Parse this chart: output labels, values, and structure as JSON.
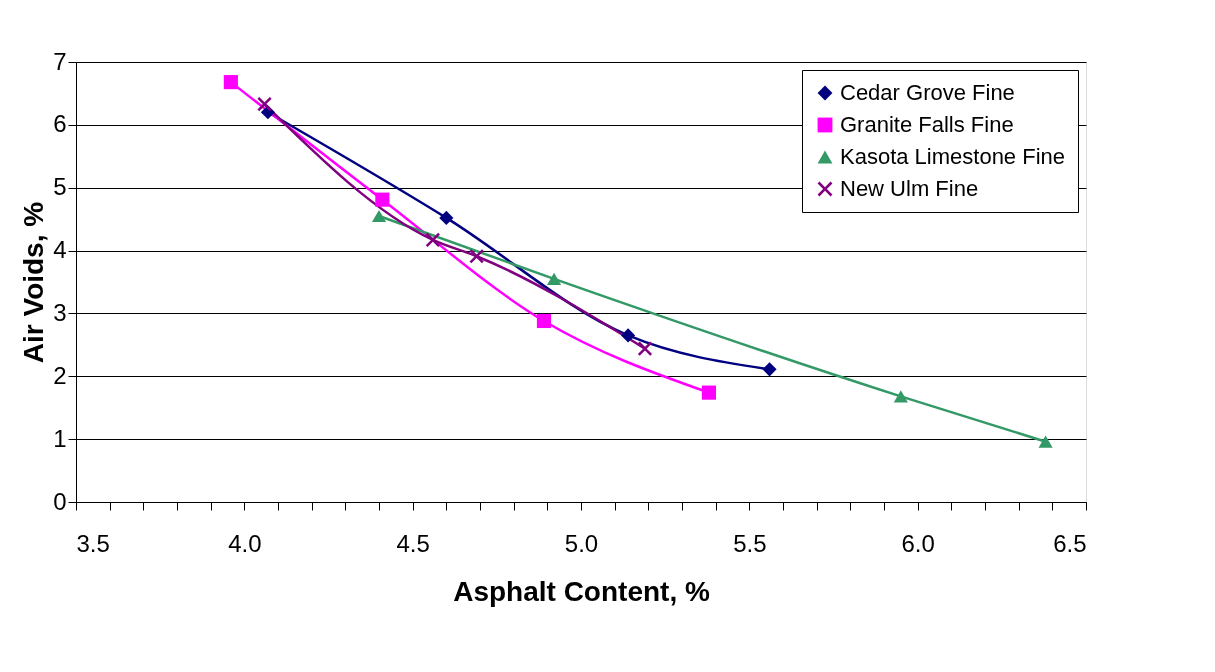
{
  "chart_data": {
    "type": "line",
    "xlabel": "Asphalt Content, %",
    "ylabel": "Air Voids, %",
    "xlim": [
      3.5,
      6.5
    ],
    "ylim": [
      0,
      7
    ],
    "xticks": [
      {
        "value": 3.5,
        "label": "3.5"
      },
      {
        "value": 3.6,
        "label": null
      },
      {
        "value": 3.7,
        "label": null
      },
      {
        "value": 3.8,
        "label": null
      },
      {
        "value": 3.9,
        "label": null
      },
      {
        "value": 4.0,
        "label": "4.0"
      },
      {
        "value": 4.1,
        "label": null
      },
      {
        "value": 4.2,
        "label": null
      },
      {
        "value": 4.3,
        "label": null
      },
      {
        "value": 4.4,
        "label": null
      },
      {
        "value": 4.5,
        "label": "4.5"
      },
      {
        "value": 4.6,
        "label": null
      },
      {
        "value": 4.7,
        "label": null
      },
      {
        "value": 4.8,
        "label": null
      },
      {
        "value": 4.9,
        "label": null
      },
      {
        "value": 5.0,
        "label": "5.0"
      },
      {
        "value": 5.1,
        "label": null
      },
      {
        "value": 5.2,
        "label": null
      },
      {
        "value": 5.3,
        "label": null
      },
      {
        "value": 5.4,
        "label": null
      },
      {
        "value": 5.5,
        "label": "5.5"
      },
      {
        "value": 5.6,
        "label": null
      },
      {
        "value": 5.7,
        "label": null
      },
      {
        "value": 5.8,
        "label": null
      },
      {
        "value": 5.9,
        "label": null
      },
      {
        "value": 6.0,
        "label": "6.0"
      },
      {
        "value": 6.1,
        "label": null
      },
      {
        "value": 6.2,
        "label": null
      },
      {
        "value": 6.3,
        "label": null
      },
      {
        "value": 6.4,
        "label": null
      },
      {
        "value": 6.5,
        "label": "6.5"
      }
    ],
    "yticks": [
      0,
      1,
      2,
      3,
      4,
      5,
      6,
      7
    ],
    "grid": "y",
    "legend": "top right",
    "series": [
      {
        "name": "Cedar Grove Fine",
        "color": "#000080",
        "marker": "diamond",
        "x": [
          4.07,
          4.6,
          5.14,
          5.56
        ],
        "values": [
          6.2,
          4.52,
          2.65,
          2.11
        ]
      },
      {
        "name": "Granite Falls Fine",
        "color": "#ff00ff",
        "marker": "square",
        "x": [
          3.96,
          4.41,
          4.89,
          5.38
        ],
        "values": [
          6.68,
          4.81,
          2.88,
          1.74
        ]
      },
      {
        "name": "Kasota Limestone Fine",
        "color": "#339966",
        "marker": "triangle",
        "x": [
          4.4,
          4.92,
          5.95,
          6.38
        ],
        "values": [
          4.55,
          3.55,
          1.68,
          0.96
        ]
      },
      {
        "name": "New Ulm Fine",
        "color": "#800080",
        "marker": "cross",
        "x": [
          4.06,
          4.56,
          4.69,
          5.19
        ],
        "values": [
          6.33,
          4.17,
          3.91,
          2.44
        ]
      }
    ]
  }
}
